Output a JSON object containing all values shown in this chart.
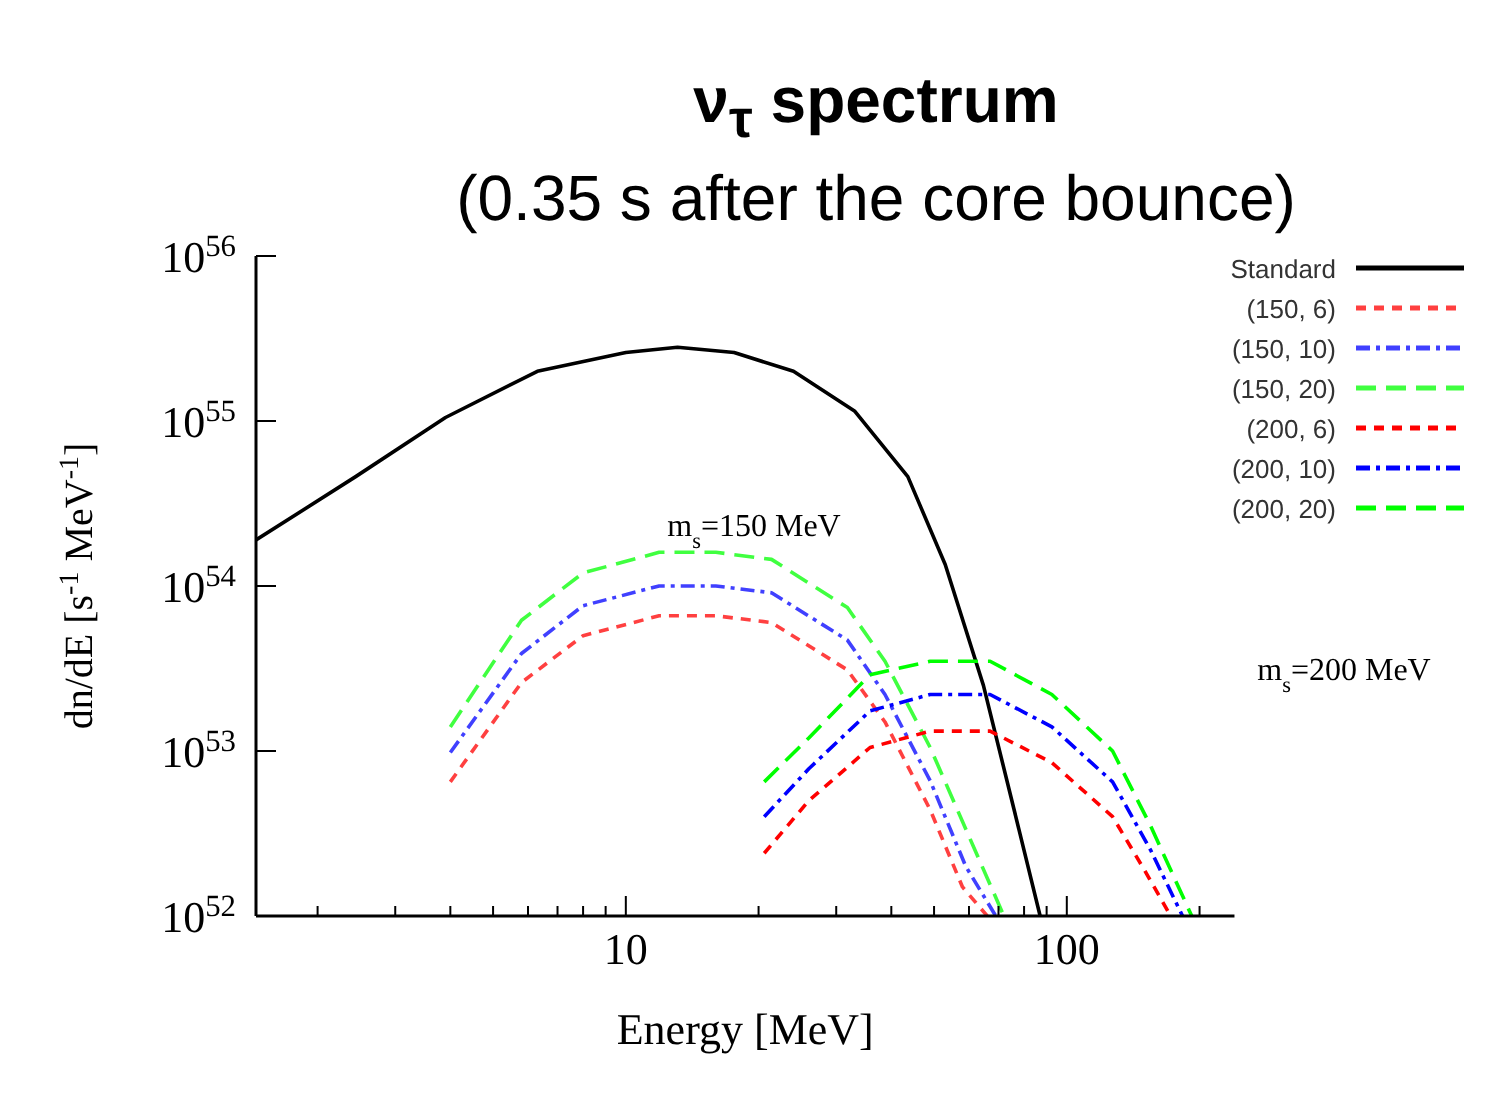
{
  "chart_data": {
    "type": "line",
    "title": "ν$_{τ}$ spectrum",
    "subtitle": "(0.35 s after the core bounce)",
    "xlabel": "Energy [MeV]",
    "ylabel": "dn/dE [s$^{-1}$ MeV$^{-1}$]",
    "log": "xy",
    "grid": false,
    "legend": "top right",
    "marker": "none",
    "xlim": [
      1.45,
      240
    ],
    "ylim": [
      1e+52,
      1e+56
    ],
    "xticks": [
      {
        "value": 2,
        "label": null
      },
      {
        "value": 3,
        "label": null
      },
      {
        "value": 4,
        "label": null
      },
      {
        "value": 5,
        "label": null
      },
      {
        "value": 6,
        "label": null
      },
      {
        "value": 7,
        "label": null
      },
      {
        "value": 8,
        "label": null
      },
      {
        "value": 9,
        "label": null
      },
      10,
      {
        "value": 20,
        "label": null
      },
      {
        "value": 30,
        "label": null
      },
      {
        "value": 40,
        "label": null
      },
      {
        "value": 50,
        "label": null
      },
      {
        "value": 60,
        "label": null
      },
      {
        "value": 70,
        "label": null
      },
      {
        "value": 80,
        "label": null
      },
      {
        "value": 90,
        "label": null
      },
      100,
      {
        "value": 200,
        "label": null
      }
    ],
    "yticks": [
      {
        "value": 1e+52,
        "label": "10$^{52}$"
      },
      {
        "value": 1e+53,
        "label": "10$^{53}$"
      },
      {
        "value": 1e+54,
        "label": "10$^{54}$"
      },
      {
        "value": 1e+55,
        "label": "10$^{55}$"
      },
      {
        "value": 1e+56,
        "label": "10$^{56}$"
      }
    ],
    "annotations": [
      "m$_{s}$=150 MeV",
      "m$_{s}$=200 MeV"
    ],
    "series": [
      {
        "name": "Standard",
        "color": "#000000",
        "line_style": "solid",
        "x": [
          1.45,
          2.44,
          3.9,
          6.3,
          10,
          13.1,
          17.6,
          24,
          33,
          43.6,
          53,
          64.7,
          75.8,
          87
        ],
        "values": [
          1.9e+54,
          4.6e+54,
          1.05e+55,
          2e+55,
          2.6e+55,
          2.8e+55,
          2.6e+55,
          2e+55,
          1.15e+55,
          4.6e+54,
          1.35e+54,
          2.5e+53,
          4.5e+52,
          1e+52
        ]
      },
      {
        "name": "(150, 6)",
        "color": "#ff4040",
        "line_style": "dashed",
        "x": [
          4,
          5.8,
          8,
          11.9,
          16,
          21.4,
          31.8,
          38.7,
          49,
          58,
          66
        ],
        "values": [
          6.5e+52,
          2.6e+53,
          5e+53,
          6.6e+53,
          6.6e+53,
          6e+53,
          3.1e+53,
          1.5e+53,
          4.4e+52,
          1.5e+52,
          1e+52
        ]
      },
      {
        "name": "(150, 10)",
        "color": "#4040ff",
        "line_style": "dashdot",
        "x": [
          4,
          5.8,
          8,
          11.9,
          16,
          21.4,
          31.8,
          38.7,
          49,
          59,
          69
        ],
        "values": [
          9.8e+52,
          3.9e+53,
          7.6e+53,
          1e+54,
          1e+54,
          9.1e+53,
          4.7e+53,
          2.2e+53,
          6.6e+52,
          2e+52,
          1e+52
        ]
      },
      {
        "name": "(150, 20)",
        "color": "#40ff40",
        "line_style": "longdash",
        "x": [
          4,
          5.8,
          8,
          11.9,
          16,
          21.4,
          31.8,
          38.7,
          49,
          59.8,
          72
        ],
        "values": [
          1.4e+53,
          6.2e+53,
          1.2e+54,
          1.6e+54,
          1.6e+54,
          1.45e+54,
          7.4e+53,
          3.5e+53,
          1.05e+53,
          3.1e+52,
          1e+52
        ]
      },
      {
        "name": "(200, 6)",
        "color": "#ff0000",
        "line_style": "dashed",
        "x": [
          20.6,
          26,
          35.8,
          49,
          67,
          92.5,
          127,
          150,
          172
        ],
        "values": [
          2.4e+52,
          5e+52,
          1.05e+53,
          1.32e+53,
          1.32e+53,
          8.5e+52,
          4e+52,
          1.9e+52,
          1e+52
        ]
      },
      {
        "name": "(200, 10)",
        "color": "#0000ff",
        "line_style": "dashdot",
        "x": [
          20.6,
          26,
          35.8,
          49,
          67,
          92.5,
          127,
          155,
          183
        ],
        "values": [
          4e+52,
          7.8e+52,
          1.75e+53,
          2.2e+53,
          2.2e+53,
          1.4e+53,
          6.5e+52,
          2.5e+52,
          1e+52
        ]
      },
      {
        "name": "(200, 20)",
        "color": "#00ff00",
        "line_style": "longdash",
        "x": [
          20.6,
          26,
          35.8,
          49,
          67,
          92.5,
          127,
          155,
          192
        ],
        "values": [
          6.5e+52,
          1.2e+53,
          2.9e+53,
          3.5e+53,
          3.5e+53,
          2.2e+53,
          1e+53,
          3.5e+52,
          1e+52
        ]
      }
    ]
  }
}
